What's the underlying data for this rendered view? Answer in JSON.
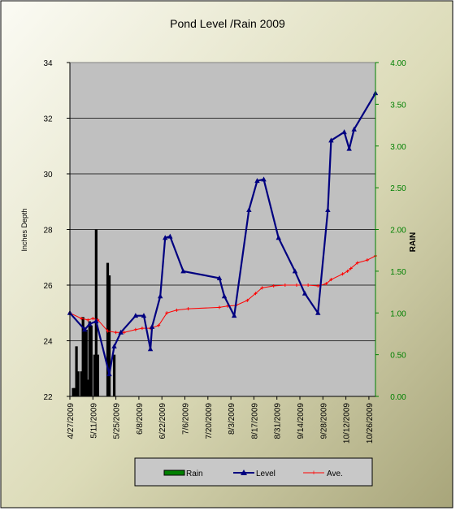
{
  "chart_data": {
    "type": "line",
    "title": "Pond Level /Rain 2009",
    "ylabel": "Inches Depth",
    "y2label": "RAIN",
    "ylim": [
      22,
      34
    ],
    "y_ticks": [
      22,
      24,
      26,
      28,
      30,
      32,
      34
    ],
    "y2lim": [
      0,
      4
    ],
    "y2_ticks": [
      "0.00",
      "0.50",
      "1.00",
      "1.50",
      "2.00",
      "2.50",
      "3.00",
      "3.50",
      "4.00"
    ],
    "x_tick_labels": [
      "4/27/2009",
      "5/11/2009",
      "5/25/2009",
      "6/8/2009",
      "6/22/2009",
      "7/6/2009",
      "7/20/2009",
      "8/3/2009",
      "8/17/2009",
      "8/31/2009",
      "9/14/2009",
      "9/28/2009",
      "10/12/2009",
      "10/26/2009"
    ],
    "x_range": [
      "4/27/2009",
      "10/30/2009"
    ],
    "grid": true,
    "legend_position": "bottom",
    "colors": {
      "rain": "#000000",
      "level": "#000080",
      "ave": "#ff0000",
      "plot_bg": "#c0c0c0",
      "right_axis": "#008000",
      "legend_rain_swatch": "#008000"
    },
    "series": [
      {
        "name": "Rain",
        "axis": "right",
        "kind": "bar",
        "points": [
          [
            "4/29/2009",
            0.1
          ],
          [
            "4/30/2009",
            0.1
          ],
          [
            "5/1/2009",
            0.6
          ],
          [
            "5/2/2009",
            0.3
          ],
          [
            "5/4/2009",
            0.3
          ],
          [
            "5/5/2009",
            0.95
          ],
          [
            "5/6/2009",
            0.8
          ],
          [
            "5/7/2009",
            0.8
          ],
          [
            "5/8/2009",
            0.2
          ],
          [
            "5/9/2009",
            0.9
          ],
          [
            "5/10/2009",
            0.85
          ],
          [
            "5/12/2009",
            0.5
          ],
          [
            "5/13/2009",
            2.0
          ],
          [
            "5/14/2009",
            0.5
          ],
          [
            "5/20/2009",
            1.6
          ],
          [
            "5/21/2009",
            1.45
          ],
          [
            "5/24/2009",
            0.5
          ]
        ]
      },
      {
        "name": "Level",
        "axis": "left",
        "kind": "line",
        "points": [
          [
            "4/27/2009",
            25.0
          ],
          [
            "5/6/2009",
            24.4
          ],
          [
            "5/9/2009",
            24.6
          ],
          [
            "5/13/2009",
            24.7
          ],
          [
            "5/21/2009",
            22.8
          ],
          [
            "5/24/2009",
            23.8
          ],
          [
            "5/28/2009",
            24.3
          ],
          [
            "6/6/2009",
            24.9
          ],
          [
            "6/11/2009",
            24.9
          ],
          [
            "6/15/2009",
            23.7
          ],
          [
            "6/16/2009",
            24.5
          ],
          [
            "6/21/2009",
            25.6
          ],
          [
            "6/24/2009",
            27.7
          ],
          [
            "6/27/2009",
            27.75
          ],
          [
            "7/5/2009",
            26.5
          ],
          [
            "7/27/2009",
            26.25
          ],
          [
            "7/30/2009",
            25.6
          ],
          [
            "8/5/2009",
            24.9
          ],
          [
            "8/14/2009",
            28.7
          ],
          [
            "8/19/2009",
            29.75
          ],
          [
            "8/23/2009",
            29.8
          ],
          [
            "9/1/2009",
            27.7
          ],
          [
            "9/11/2009",
            26.5
          ],
          [
            "9/17/2009",
            25.7
          ],
          [
            "9/25/2009",
            25.0
          ],
          [
            "10/1/2009",
            28.7
          ],
          [
            "10/3/2009",
            31.2
          ],
          [
            "10/11/2009",
            31.5
          ],
          [
            "10/14/2009",
            30.9
          ],
          [
            "10/17/2009",
            31.6
          ],
          [
            "10/30/2009",
            32.9
          ]
        ]
      },
      {
        "name": "Ave.",
        "axis": "left",
        "kind": "line",
        "points": [
          [
            "4/27/2009",
            25.0
          ],
          [
            "5/4/2009",
            24.8
          ],
          [
            "5/8/2009",
            24.75
          ],
          [
            "5/11/2009",
            24.8
          ],
          [
            "5/14/2009",
            24.75
          ],
          [
            "5/20/2009",
            24.35
          ],
          [
            "5/25/2009",
            24.3
          ],
          [
            "5/30/2009",
            24.3
          ],
          [
            "6/6/2009",
            24.4
          ],
          [
            "6/10/2009",
            24.45
          ],
          [
            "6/15/2009",
            24.45
          ],
          [
            "6/20/2009",
            24.55
          ],
          [
            "6/25/2009",
            25.0
          ],
          [
            "7/1/2009",
            25.1
          ],
          [
            "7/8/2009",
            25.15
          ],
          [
            "7/27/2009",
            25.2
          ],
          [
            "8/1/2009",
            25.25
          ],
          [
            "8/6/2009",
            25.27
          ],
          [
            "8/13/2009",
            25.45
          ],
          [
            "8/18/2009",
            25.7
          ],
          [
            "8/22/2009",
            25.9
          ],
          [
            "8/29/2009",
            25.97
          ],
          [
            "9/5/2009",
            26.0
          ],
          [
            "9/12/2009",
            26.0
          ],
          [
            "9/19/2009",
            26.0
          ],
          [
            "9/25/2009",
            25.97
          ],
          [
            "9/30/2009",
            26.05
          ],
          [
            "10/3/2009",
            26.2
          ],
          [
            "10/10/2009",
            26.4
          ],
          [
            "10/13/2009",
            26.5
          ],
          [
            "10/15/2009",
            26.6
          ],
          [
            "10/19/2009",
            26.8
          ],
          [
            "10/25/2009",
            26.9
          ],
          [
            "10/30/2009",
            27.05
          ]
        ]
      }
    ]
  }
}
